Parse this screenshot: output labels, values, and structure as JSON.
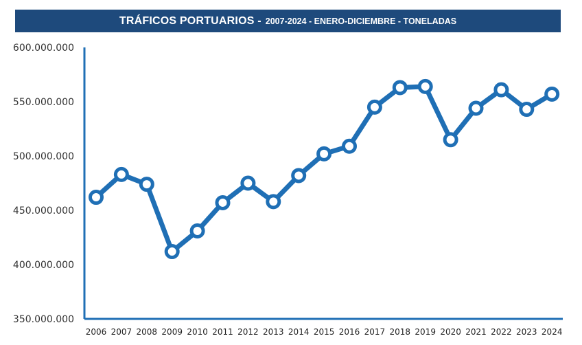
{
  "title": {
    "main": "TRÁFICOS PORTUARIOS -",
    "sub": "2007-2024 - ENERO-DICIEMBRE - TONELADAS"
  },
  "colors": {
    "title_background": "#1e4a7c",
    "line": "#1f6fb5",
    "axis": "#1f6fb5",
    "marker_fill": "#ffffff"
  },
  "chart_data": {
    "type": "line",
    "title": "TRÁFICOS PORTUARIOS - 2007-2024 - ENERO-DICIEMBRE - TONELADAS",
    "x": [
      "2006",
      "2007",
      "2008",
      "2009",
      "2010",
      "2011",
      "2012",
      "2013",
      "2014",
      "2015",
      "2016",
      "2017",
      "2018",
      "2019",
      "2020",
      "2021",
      "2022",
      "2023",
      "2024"
    ],
    "series": [
      {
        "values": [
          462000000,
          483000000,
          474000000,
          412000000,
          431000000,
          457000000,
          475000000,
          458000000,
          482000000,
          502000000,
          509000000,
          545000000,
          563000000,
          564000000,
          515000000,
          544000000,
          561000000,
          543000000,
          557000000
        ]
      }
    ],
    "ylim": [
      350000000,
      600000000
    ],
    "yticks": [
      {
        "value": 600000000,
        "label": "600.000.000"
      },
      {
        "value": 550000000,
        "label": "550.000.000"
      },
      {
        "value": 500000000,
        "label": "500.000.000"
      },
      {
        "value": 450000000,
        "label": "450.000.000"
      },
      {
        "value": 400000000,
        "label": "400.000.000"
      },
      {
        "value": 350000000,
        "label": "350.000.000"
      }
    ],
    "xlabel": "",
    "ylabel": "",
    "grid": false,
    "legend": "none"
  }
}
